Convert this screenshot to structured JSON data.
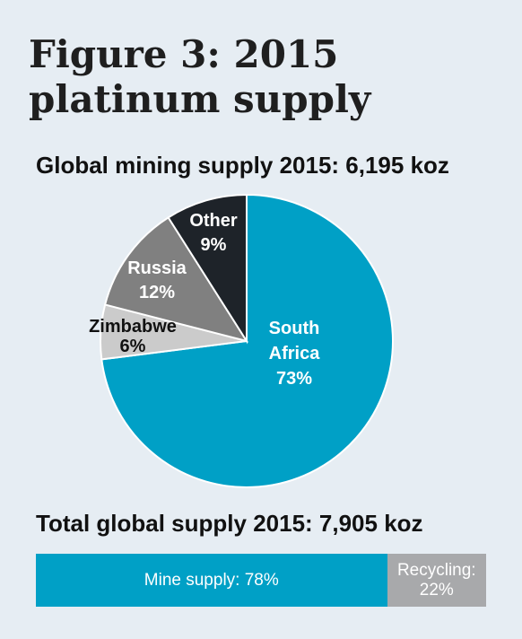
{
  "title": "Figure 3: 2015 platinum supply",
  "chart_data": [
    {
      "type": "pie",
      "title": "Global mining supply 2015: 6,195 koz",
      "categories": [
        "South Africa",
        "Zimbabwe",
        "Russia",
        "Other"
      ],
      "values": [
        73,
        6,
        12,
        9
      ],
      "labels": [
        {
          "lines": [
            "South",
            "Africa",
            "73%"
          ]
        },
        {
          "lines": [
            "Zimbabwe",
            "6%"
          ]
        },
        {
          "lines": [
            "Russia",
            "12%"
          ]
        },
        {
          "lines": [
            "Other",
            "9%"
          ]
        }
      ],
      "colors": [
        "#00a0c6",
        "#cbcbcb",
        "#808080",
        "#1e2329"
      ],
      "label_colors": [
        "#ffffff",
        "#111111",
        "#ffffff",
        "#ffffff"
      ]
    },
    {
      "type": "bar",
      "orientation": "horizontal-stacked",
      "title": "Total global supply 2015: 7,905 koz",
      "categories": [
        "Mine supply",
        "Recycling"
      ],
      "values": [
        78,
        22
      ],
      "labels": [
        "Mine supply: 78%",
        "Recycling:\n22%"
      ],
      "colors": [
        "#00a0c6",
        "#a8a9ab"
      ]
    }
  ]
}
